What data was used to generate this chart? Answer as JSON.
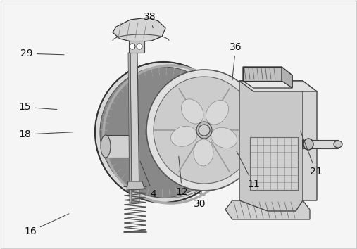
{
  "background_color": "#ffffff",
  "figure_width": 5.07,
  "figure_height": 3.54,
  "dpi": 100,
  "label_fontsize": 10,
  "label_color": "#111111",
  "line_color": "#444444",
  "line_lw": 0.75,
  "labels": {
    "16": {
      "lp": [
        0.085,
        0.93
      ],
      "ap": [
        0.198,
        0.855
      ]
    },
    "4": {
      "lp": [
        0.43,
        0.78
      ],
      "ap": [
        0.39,
        0.64
      ]
    },
    "12": {
      "lp": [
        0.51,
        0.77
      ],
      "ap": [
        0.5,
        0.62
      ]
    },
    "30": {
      "lp": [
        0.56,
        0.82
      ],
      "ap": [
        0.565,
        0.76
      ]
    },
    "11": {
      "lp": [
        0.71,
        0.74
      ],
      "ap": [
        0.66,
        0.6
      ]
    },
    "21": {
      "lp": [
        0.885,
        0.69
      ],
      "ap": [
        0.84,
        0.52
      ]
    },
    "18": {
      "lp": [
        0.07,
        0.54
      ],
      "ap": [
        0.21,
        0.53
      ]
    },
    "15": {
      "lp": [
        0.07,
        0.43
      ],
      "ap": [
        0.165,
        0.44
      ]
    },
    "29": {
      "lp": [
        0.075,
        0.215
      ],
      "ap": [
        0.185,
        0.22
      ]
    },
    "38": {
      "lp": [
        0.42,
        0.068
      ],
      "ap": [
        0.43,
        0.12
      ]
    },
    "36": {
      "lp": [
        0.66,
        0.19
      ],
      "ap": [
        0.65,
        0.33
      ]
    }
  }
}
